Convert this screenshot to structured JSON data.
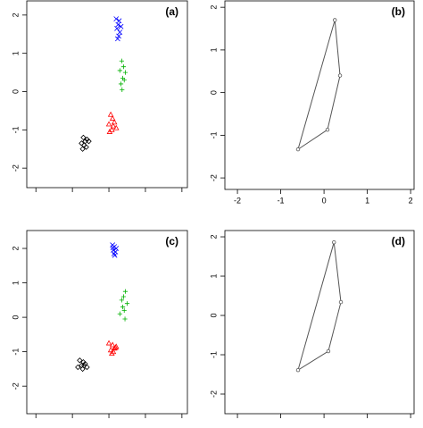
{
  "chart_data": [
    {
      "type": "scatter",
      "label": "(a)",
      "xlim": [
        -2.25,
        2.15
      ],
      "ylim": [
        -2.51,
        2.37
      ],
      "xticks": [
        -2,
        -1,
        0,
        1,
        2
      ],
      "yticks": [
        -2,
        -1,
        0,
        1,
        2
      ],
      "show_xtick_labels": false,
      "series": [
        {
          "color": "#0000ff",
          "marker": "x",
          "x": [
            0.2,
            0.28,
            0.25,
            0.33,
            0.22,
            0.3,
            0.27,
            0.24
          ],
          "values": [
            1.9,
            1.85,
            1.75,
            1.7,
            1.65,
            1.55,
            1.45,
            1.38
          ]
        },
        {
          "color": "#00b000",
          "marker": "plus",
          "x": [
            0.35,
            0.4,
            0.3,
            0.45,
            0.38,
            0.33,
            0.42,
            0.36
          ],
          "values": [
            0.8,
            0.65,
            0.55,
            0.5,
            0.35,
            0.2,
            0.3,
            0.05
          ]
        },
        {
          "color": "#ff0000",
          "marker": "triangle",
          "x": [
            0.05,
            0.1,
            0.15,
            0.0,
            0.12,
            0.2,
            0.08,
            0.02
          ],
          "values": [
            -0.6,
            -0.7,
            -0.8,
            -0.85,
            -0.9,
            -0.95,
            -1.0,
            -1.05
          ]
        },
        {
          "color": "#000000",
          "marker": "diamond",
          "x": [
            -0.7,
            -0.6,
            -0.65,
            -0.75,
            -0.55,
            -0.68,
            -0.62,
            -0.72
          ],
          "values": [
            -1.2,
            -1.25,
            -1.3,
            -1.35,
            -1.3,
            -1.4,
            -1.45,
            -1.5
          ]
        }
      ]
    },
    {
      "type": "polygon",
      "label": "(b)",
      "xlim": [
        -2.29,
        2.08
      ],
      "ylim": [
        -2.27,
        2.15
      ],
      "xticks": [
        -2,
        -1,
        0,
        1,
        2
      ],
      "yticks": [
        -2,
        -1,
        0,
        1,
        2
      ],
      "show_xtick_labels": true,
      "series": [
        {
          "color": "#555555",
          "x": [
            0.25,
            0.37,
            0.08,
            -0.6
          ],
          "values": [
            1.7,
            0.4,
            -0.87,
            -1.33
          ]
        }
      ]
    },
    {
      "type": "scatter",
      "label": "(c)",
      "xlim": [
        -2.25,
        2.15
      ],
      "ylim": [
        -2.8,
        2.52
      ],
      "xticks": [
        -2,
        -1,
        0,
        1,
        2
      ],
      "yticks": [
        -2,
        -1,
        0,
        1,
        2
      ],
      "show_xtick_labels": false,
      "series": [
        {
          "color": "#0000ff",
          "marker": "x",
          "x": [
            0.1,
            0.15,
            0.2,
            0.12,
            0.18,
            0.14,
            0.16,
            0.11
          ],
          "values": [
            2.1,
            2.05,
            2.0,
            1.95,
            1.9,
            1.85,
            1.8,
            2.02
          ]
        },
        {
          "color": "#00b000",
          "marker": "plus",
          "x": [
            0.45,
            0.4,
            0.35,
            0.5,
            0.38,
            0.42,
            0.3,
            0.44
          ],
          "values": [
            0.75,
            0.6,
            0.5,
            0.4,
            0.3,
            0.2,
            0.1,
            -0.05
          ]
        },
        {
          "color": "#ff0000",
          "marker": "triangle",
          "x": [
            0.0,
            0.1,
            0.2,
            0.15,
            0.05,
            0.12,
            0.08,
            0.18
          ],
          "values": [
            -0.75,
            -0.8,
            -0.85,
            -0.9,
            -0.95,
            -1.0,
            -1.05,
            -0.88
          ]
        },
        {
          "color": "#000000",
          "marker": "diamond",
          "x": [
            -0.8,
            -0.7,
            -0.65,
            -0.75,
            -0.6,
            -0.72,
            -0.68,
            -0.85
          ],
          "values": [
            -1.25,
            -1.3,
            -1.35,
            -1.4,
            -1.45,
            -1.5,
            -1.4,
            -1.45
          ]
        }
      ]
    },
    {
      "type": "polygon",
      "label": "(d)",
      "xlim": [
        -2.29,
        2.08
      ],
      "ylim": [
        -2.5,
        2.16
      ],
      "xticks": [
        -2,
        -1,
        0,
        1,
        2
      ],
      "yticks": [
        -2,
        -1,
        0,
        1,
        2
      ],
      "show_xtick_labels": false,
      "series": [
        {
          "color": "#555555",
          "x": [
            0.23,
            0.39,
            0.1,
            -0.6
          ],
          "values": [
            1.86,
            0.34,
            -0.91,
            -1.39
          ]
        }
      ]
    }
  ]
}
